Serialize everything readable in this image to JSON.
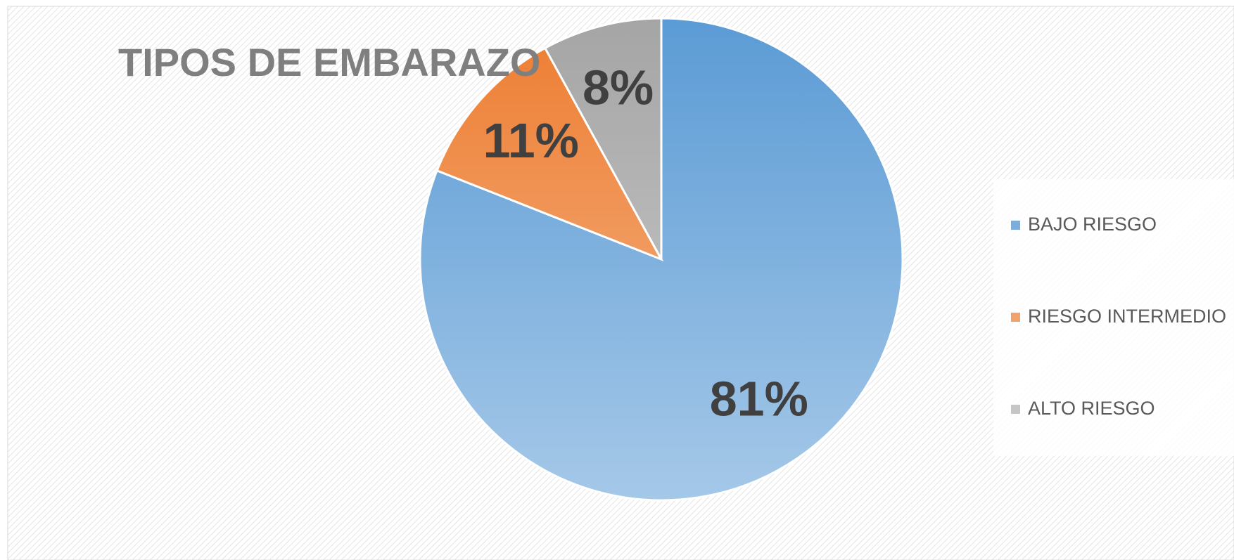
{
  "chart_data": {
    "type": "pie",
    "title": "TIPOS DE EMBARAZO",
    "categories": [
      "BAJO RIESGO",
      "RIESGO INTERMEDIO",
      "ALTO RIESGO"
    ],
    "values": [
      81,
      11,
      8
    ],
    "value_labels": [
      "81%",
      "11%",
      "8%"
    ],
    "colors": [
      "#5b9bd5",
      "#ed7d31",
      "#a5a5a5"
    ],
    "legend": "right"
  }
}
